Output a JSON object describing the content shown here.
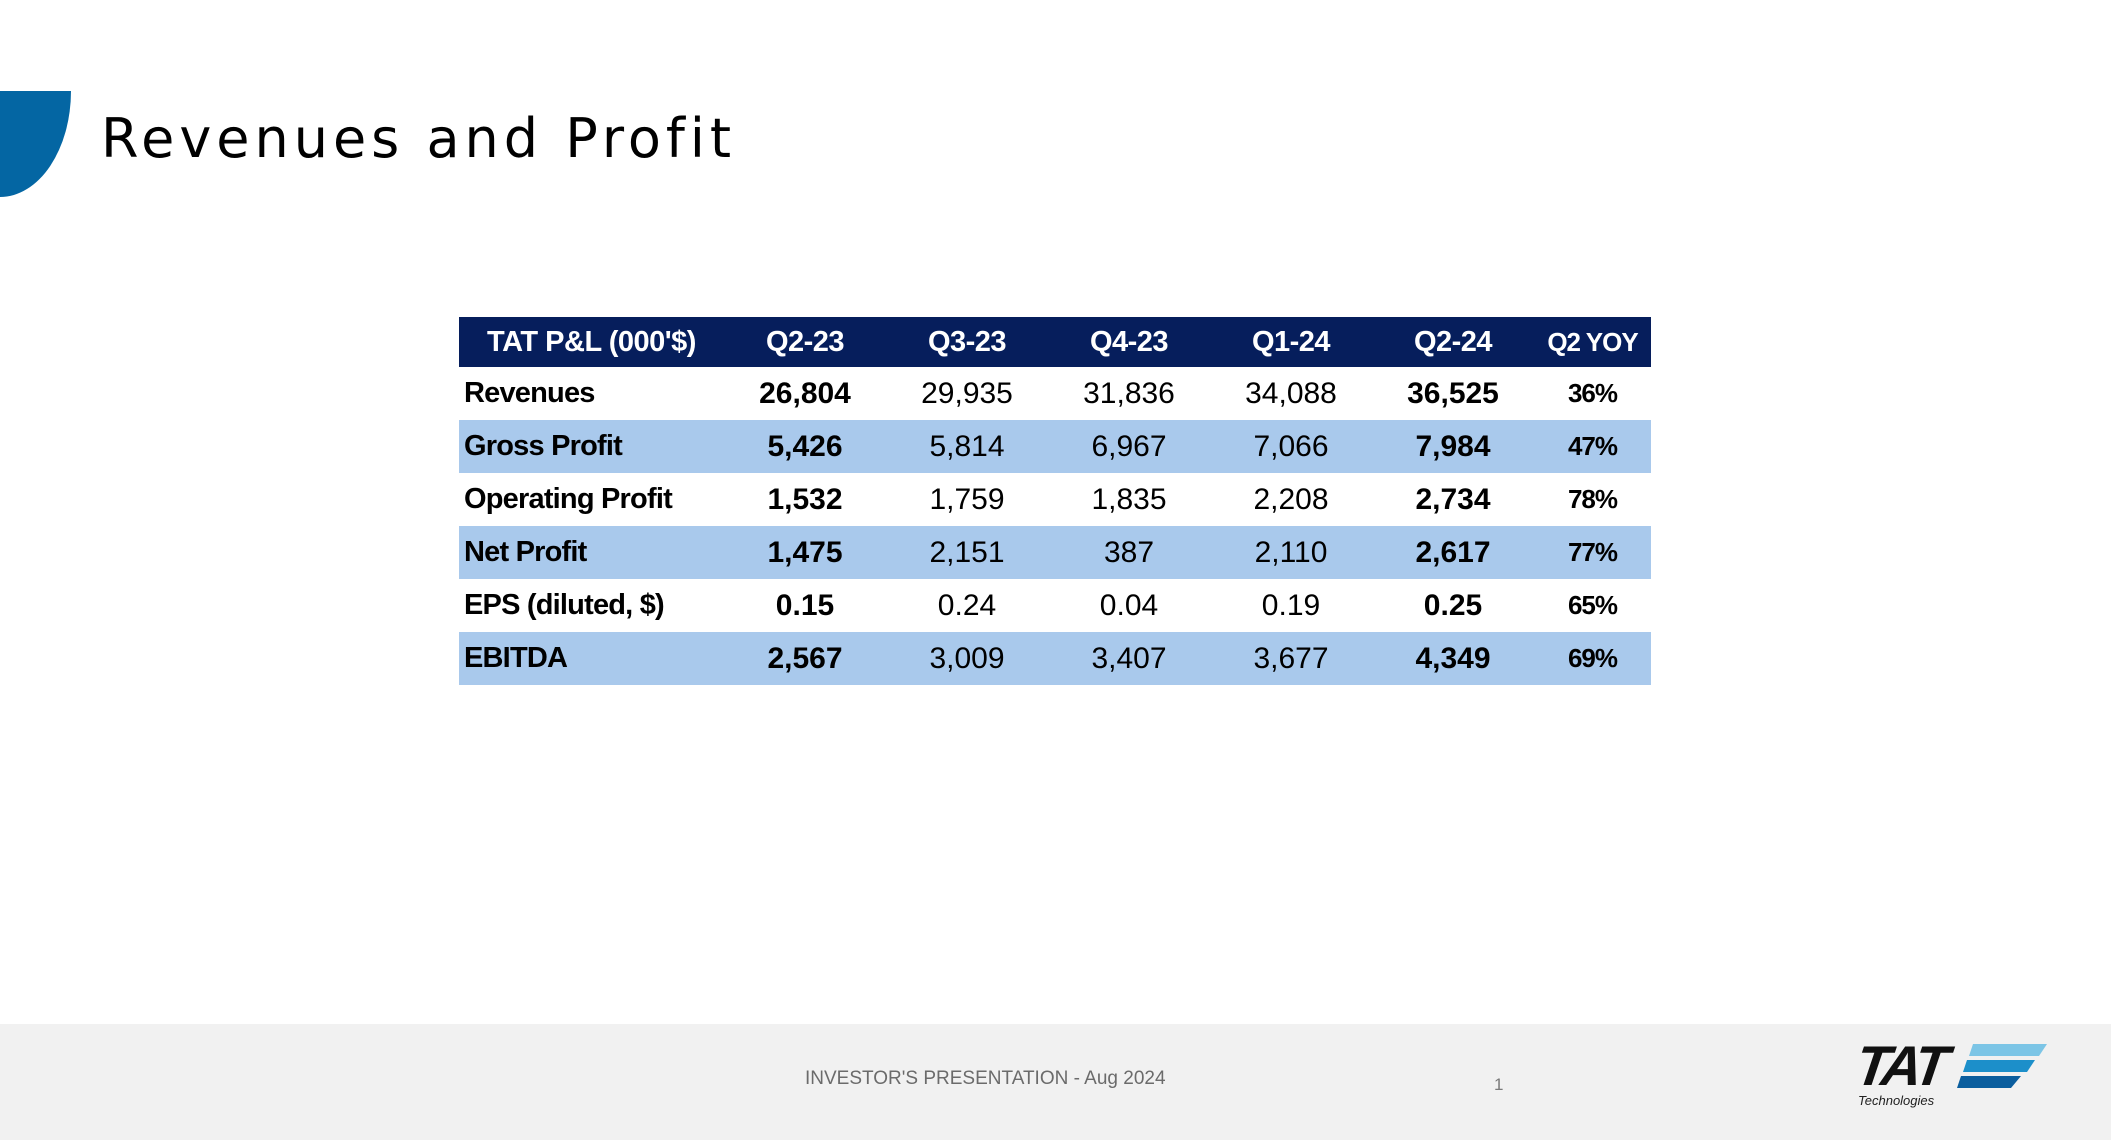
{
  "slide": {
    "title": "Revenues and Profit",
    "colors": {
      "accent": "#0466a3",
      "table_header_bg": "#061e5c",
      "table_band_bg": "#a9c9ec",
      "footer_bg": "#f1f1f1"
    }
  },
  "table": {
    "headers": [
      "TAT P&L (000'$)",
      "Q2-23",
      "Q3-23",
      "Q4-23",
      "Q1-24",
      "Q2-24",
      "Q2 YOY"
    ],
    "rows": [
      {
        "label": "Revenues",
        "values": [
          "26,804",
          "29,935",
          "31,836",
          "34,088",
          "36,525"
        ],
        "yoy": "36%"
      },
      {
        "label": "Gross Profit",
        "values": [
          "5,426",
          "5,814",
          "6,967",
          "7,066",
          "7,984"
        ],
        "yoy": "47%"
      },
      {
        "label": "Operating Profit",
        "values": [
          "1,532",
          "1,759",
          "1,835",
          "2,208",
          "2,734"
        ],
        "yoy": "78%"
      },
      {
        "label": "Net Profit",
        "values": [
          "1,475",
          "2,151",
          "387",
          "2,110",
          "2,617"
        ],
        "yoy": "77%"
      },
      {
        "label": "EPS (diluted, $)",
        "values": [
          "0.15",
          "0.24",
          "0.04",
          "0.19",
          "0.25"
        ],
        "yoy": "65%"
      },
      {
        "label": "EBITDA",
        "values": [
          "2,567",
          "3,009",
          "3,407",
          "3,677",
          "4,349"
        ],
        "yoy": "69%"
      }
    ]
  },
  "footer": {
    "text": "INVESTOR'S PRESENTATION - Aug 2024",
    "page_number": "1",
    "logo": {
      "name": "TAT",
      "subtitle": "Technologies",
      "stripe_colors": [
        "#7cc5e6",
        "#1c8fca",
        "#0b5e9e"
      ]
    }
  }
}
